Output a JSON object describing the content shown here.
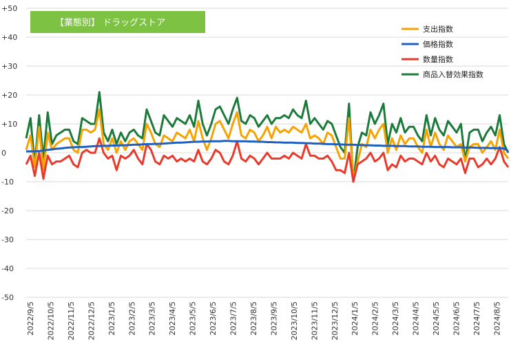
{
  "chart_data": {
    "type": "line",
    "title": "【業態別】 ドラッグストア",
    "ylim": [
      -50,
      50
    ],
    "y_ticks": [
      "+50",
      "+40",
      "+30",
      "+20",
      "+10",
      "0",
      "-10",
      "-20",
      "-30",
      "-40",
      "-50"
    ],
    "x_ticks": [
      "2022/9/5",
      "2022/10/5",
      "2022/11/5",
      "2022/12/5",
      "2023/1/5",
      "2023/2/5",
      "2023/3/5",
      "2023/4/5",
      "2023/5/5",
      "2023/6/5",
      "2023/7/5",
      "2023/8/5",
      "2023/9/5",
      "2023/10/5",
      "2023/11/5",
      "2023/12/5",
      "2024/1/5",
      "2024/2/5",
      "2024/3/5",
      "2024/4/5",
      "2024/5/5",
      "2024/6/5",
      "2024/7/5",
      "2024/8/5"
    ],
    "grid": true,
    "legend_position": "top-right",
    "series": [
      {
        "name": "支出指数",
        "color": "#F5A300",
        "values": [
          1,
          6,
          -5,
          9,
          -6,
          7,
          1,
          3,
          4,
          5,
          5,
          1,
          0,
          8,
          8,
          7,
          8,
          15,
          3,
          1,
          5,
          0,
          4,
          1,
          4,
          5,
          3,
          1,
          10,
          7,
          3,
          2,
          6,
          5,
          4,
          7,
          6,
          5,
          8,
          4,
          11,
          5,
          1,
          5,
          10,
          11,
          8,
          5,
          10,
          14,
          6,
          5,
          8,
          7,
          4,
          6,
          9,
          5,
          9,
          7,
          8,
          7,
          9,
          8,
          7,
          10,
          5,
          6,
          5,
          3,
          7,
          6,
          2,
          -2,
          -2,
          12,
          -9,
          -3,
          3,
          2,
          8,
          5,
          8,
          10,
          0,
          5,
          1,
          6,
          3,
          5,
          5,
          2,
          0,
          8,
          2,
          7,
          3,
          1,
          6,
          4,
          2,
          3,
          -3,
          2,
          3,
          3,
          0,
          2,
          4,
          1,
          8,
          0,
          -2
        ]
      },
      {
        "name": "価格指数",
        "color": "#1F5FBF",
        "values": [
          0.5,
          0.5,
          0.5,
          0.6,
          0.8,
          1,
          1.2,
          1.4,
          1.5,
          1.7,
          1.8,
          1.9,
          2,
          2,
          2.1,
          2.2,
          2.3,
          2.3,
          2.4,
          2.4,
          2.5,
          2.5,
          2.6,
          2.6,
          2.7,
          2.8,
          2.8,
          2.9,
          3,
          3,
          3.1,
          3.1,
          3.2,
          3.3,
          3.4,
          3.5,
          3.5,
          3.6,
          3.7,
          3.8,
          3.8,
          3.9,
          3.9,
          4,
          4,
          4,
          4.1,
          4.1,
          4,
          4,
          4,
          4,
          3.9,
          3.9,
          3.8,
          3.8,
          3.7,
          3.7,
          3.6,
          3.6,
          3.5,
          3.5,
          3.5,
          3.4,
          3.4,
          3.3,
          3.3,
          3.2,
          3.2,
          3.1,
          3,
          3,
          2.9,
          2.9,
          2.8,
          2.8,
          2.8,
          2.7,
          2.7,
          2.6,
          2.6,
          2.5,
          2.5,
          2.4,
          2.4,
          2.4,
          2.3,
          2.3,
          2.3,
          2.2,
          2.2,
          2.2,
          2.1,
          2.1,
          2.1,
          2,
          2,
          2,
          2,
          1.9,
          1.9,
          1.9,
          1.8,
          1.8,
          1.8,
          1.7,
          1.7,
          1.7,
          1.6,
          1.6,
          1.6,
          1.5,
          0.5
        ]
      },
      {
        "name": "数量指数",
        "color": "#E8392A",
        "values": [
          -4,
          -1,
          -8,
          0,
          -9,
          -1,
          -4,
          -3,
          -3,
          -2,
          -1,
          -4,
          -5,
          0,
          1,
          0,
          0,
          5,
          0,
          -2,
          -1,
          -6,
          -1,
          -2,
          -1,
          1,
          -2,
          -4,
          3,
          1,
          -3,
          -4,
          -1,
          -2,
          -1,
          -3,
          -2,
          -3,
          -2,
          -3,
          1,
          -3,
          -4,
          -2,
          1,
          0,
          -3,
          -4,
          -1,
          4,
          -2,
          -3,
          -1,
          -2,
          -4,
          -2,
          0,
          -2,
          -2,
          -2,
          -1,
          -2,
          0,
          -1,
          -2,
          3,
          -1,
          -1,
          -2,
          -2,
          -1,
          -3,
          -6,
          -6,
          -7,
          0,
          -10,
          -4,
          -3,
          -2,
          0,
          -3,
          -2,
          0,
          -6,
          -4,
          -5,
          -1,
          -3,
          -2,
          -2,
          -3,
          -4,
          0,
          -3,
          -1,
          -4,
          -5,
          -2,
          -3,
          -4,
          -2,
          -7,
          -2,
          -2,
          -5,
          -4,
          -2,
          -4,
          -2,
          2,
          -3,
          -5
        ]
      },
      {
        "name": "商品入替効果指数",
        "color": "#1B7A3A",
        "values": [
          5,
          12,
          -4,
          13,
          -2,
          14,
          3,
          6,
          7,
          8,
          8,
          4,
          3,
          12,
          11,
          10,
          10,
          21,
          7,
          4,
          8,
          3,
          7,
          4,
          7,
          8,
          6,
          5,
          15,
          11,
          7,
          6,
          13,
          11,
          9,
          12,
          11,
          10,
          13,
          9,
          18,
          10,
          6,
          10,
          15,
          16,
          13,
          10,
          15,
          19,
          11,
          10,
          13,
          12,
          9,
          11,
          13,
          10,
          12,
          12,
          13,
          12,
          15,
          13,
          12,
          18,
          10,
          12,
          10,
          8,
          11,
          10,
          6,
          2,
          0,
          17,
          -10,
          2,
          7,
          6,
          14,
          10,
          13,
          17,
          3,
          10,
          7,
          12,
          7,
          9,
          9,
          6,
          4,
          13,
          6,
          12,
          8,
          6,
          11,
          9,
          7,
          10,
          -3,
          7,
          8,
          8,
          4,
          7,
          9,
          6,
          13,
          3,
          0
        ]
      }
    ]
  }
}
